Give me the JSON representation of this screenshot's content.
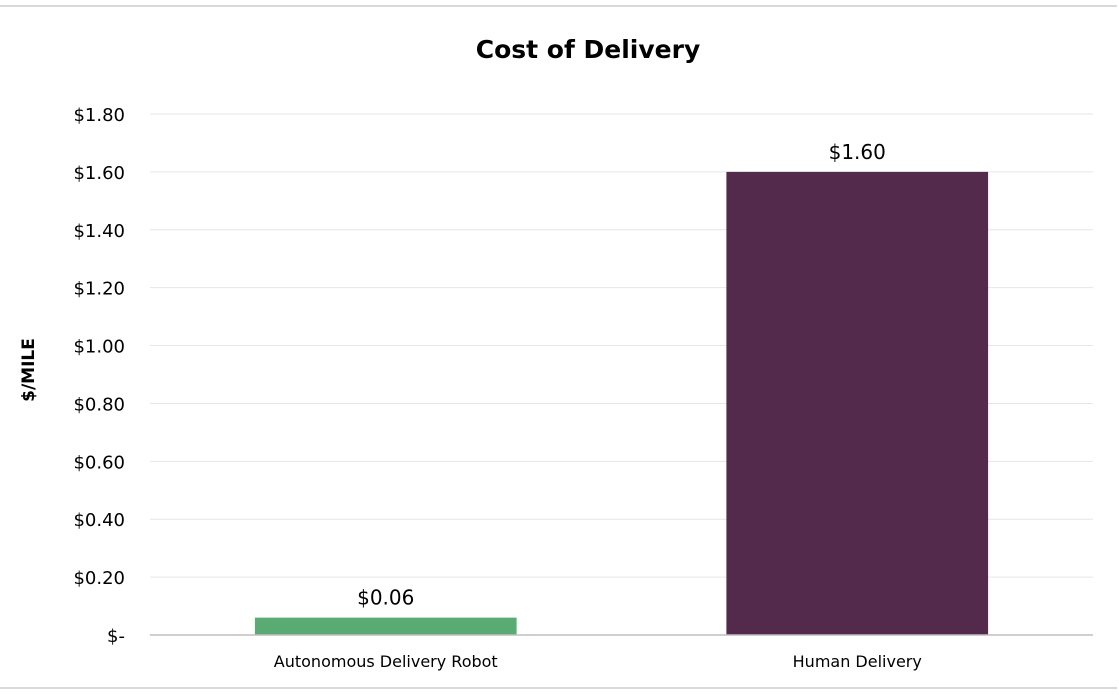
{
  "chart_data": {
    "type": "bar",
    "title": "Cost of Delivery",
    "xlabel": "",
    "ylabel": "$/MILE",
    "categories": [
      "Autonomous Delivery Robot",
      "Human Delivery"
    ],
    "values": [
      0.06,
      1.6
    ],
    "data_labels": [
      "$0.06",
      "$1.60"
    ],
    "bar_colors": [
      "#5aaa74",
      "#532a4c"
    ],
    "ylim": [
      0,
      1.8
    ],
    "yticks": [
      0,
      0.2,
      0.4,
      0.6,
      0.8,
      1.0,
      1.2,
      1.4,
      1.6,
      1.8
    ],
    "ytick_labels": [
      "$-",
      "$0.20",
      "$0.40",
      "$0.60",
      "$0.80",
      "$1.00",
      "$1.20",
      "$1.40",
      "$1.60",
      "$1.80"
    ],
    "grid": true,
    "legend": "none"
  }
}
